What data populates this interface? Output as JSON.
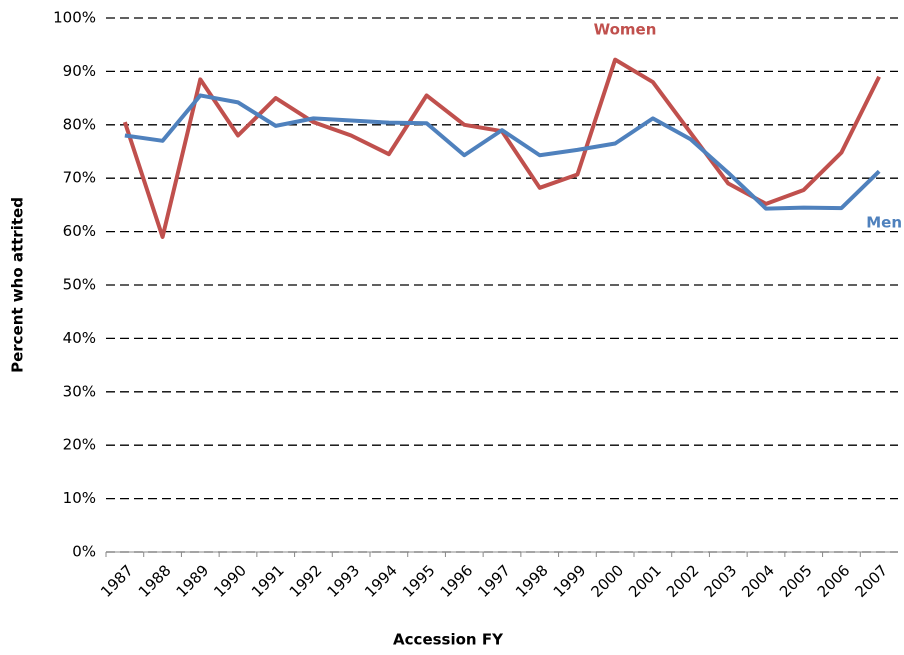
{
  "chart_data": {
    "type": "line",
    "x_label": "Accession FY",
    "y_label": "Percent who attrited",
    "categories": [
      "1987",
      "1988",
      "1989",
      "1990",
      "1991",
      "1992",
      "1993",
      "1994",
      "1995",
      "1996",
      "1997",
      "1998",
      "1999",
      "2000",
      "2001",
      "2002",
      "2003",
      "2004",
      "2005",
      "2006",
      "2007"
    ],
    "series": [
      {
        "name": "Women",
        "color": "#c0504d",
        "values": [
          80.5,
          59,
          88.5,
          78,
          85,
          80.5,
          78,
          74.5,
          85.5,
          80,
          78.8,
          68.2,
          70.7,
          92.2,
          88,
          78.5,
          69,
          65.2,
          67.8,
          74.8,
          89
        ]
      },
      {
        "name": "Men",
        "color": "#4f81bd",
        "values": [
          78,
          77,
          85.5,
          84.2,
          79.8,
          81.2,
          80.8,
          80.4,
          80.3,
          74.3,
          79,
          74.3,
          75.3,
          76.5,
          81.2,
          77.3,
          71,
          64.3,
          64.5,
          64.4,
          71.3
        ]
      }
    ],
    "ylim": [
      0,
      100
    ],
    "yticks": [
      {
        "value": 0,
        "label": "0%"
      },
      {
        "value": 10,
        "label": "10%"
      },
      {
        "value": 20,
        "label": "20%"
      },
      {
        "value": 30,
        "label": "30%"
      },
      {
        "value": 40,
        "label": "40%"
      },
      {
        "value": 50,
        "label": "50%"
      },
      {
        "value": 60,
        "label": "60%"
      },
      {
        "value": 70,
        "label": "70%"
      },
      {
        "value": 80,
        "label": "80%"
      },
      {
        "value": 90,
        "label": "90%"
      },
      {
        "value": 100,
        "label": "100%"
      }
    ],
    "grid": true
  }
}
